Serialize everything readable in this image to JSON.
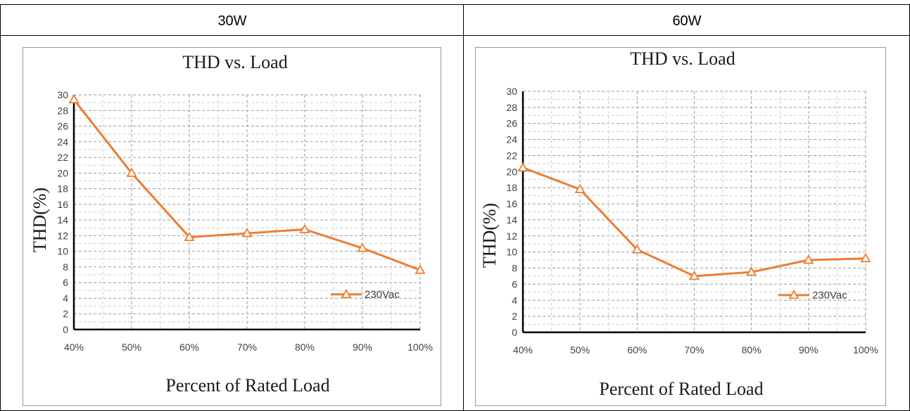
{
  "table": {
    "headers": [
      "30W",
      "60W"
    ]
  },
  "chart_data": [
    {
      "type": "line",
      "title": "THD vs. Load",
      "xlabel": "Percent of Rated Load",
      "ylabel": "THD(%)",
      "categories": [
        "40%",
        "50%",
        "60%",
        "70%",
        "80%",
        "90%",
        "100%"
      ],
      "ylim": [
        0,
        30
      ],
      "yticks": [
        "0",
        "2",
        "4",
        "6",
        "8",
        "10",
        "12",
        "14",
        "16",
        "18",
        "20",
        "22",
        "24",
        "26",
        "28",
        "30"
      ],
      "grid": true,
      "legend": "right",
      "series": [
        {
          "name": "230Vac",
          "color": "#ed7d31",
          "marker": "triangle",
          "values": [
            29.4,
            20.0,
            11.8,
            12.3,
            12.8,
            10.4,
            7.6
          ]
        }
      ]
    },
    {
      "type": "line",
      "title": "THD vs. Load",
      "xlabel": "Percent of Rated Load",
      "ylabel": "THD(%)",
      "categories": [
        "40%",
        "50%",
        "60%",
        "70%",
        "80%",
        "90%",
        "100%"
      ],
      "ylim": [
        0,
        30
      ],
      "yticks": [
        "0",
        "2",
        "4",
        "6",
        "8",
        "10",
        "12",
        "14",
        "16",
        "18",
        "20",
        "22",
        "24",
        "26",
        "28",
        "30"
      ],
      "grid": true,
      "legend": "right",
      "series": [
        {
          "name": "230Vac",
          "color": "#ed7d31",
          "marker": "triangle",
          "values": [
            20.5,
            17.8,
            10.3,
            7.0,
            7.5,
            9.0,
            9.2
          ]
        }
      ]
    }
  ]
}
